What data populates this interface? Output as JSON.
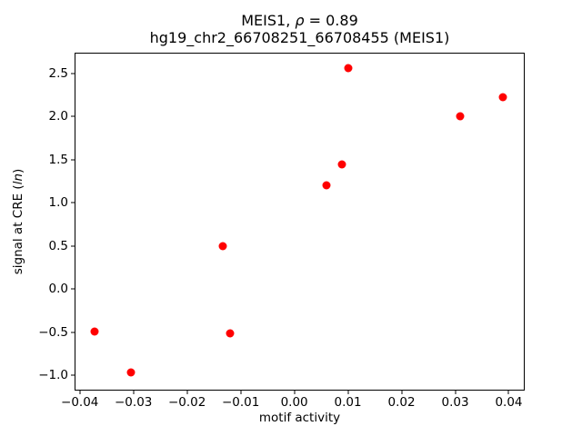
{
  "figure": {
    "title": {
      "prefix": "MEIS1, ",
      "rho": "ρ",
      "suffix": " = 0.89",
      "line2": "hg19_chr2_66708251_66708455 (MEIS1)"
    },
    "xlabel": "motif activity",
    "ylabel": {
      "prefix": "signal at CRE (",
      "italic": "ln",
      "suffix": ")"
    }
  },
  "chart_data": {
    "type": "scatter",
    "title": "MEIS1, ρ = 0.89",
    "subtitle": "hg19_chr2_66708251_66708455 (MEIS1)",
    "xlabel": "motif activity",
    "ylabel": "signal at CRE (ln)",
    "correlation_rho": 0.89,
    "grid": false,
    "legend": false,
    "background_color": "#ffffff",
    "spine_color": "#000000",
    "marker_color": "#ff0000",
    "xlim": [
      -0.0408,
      0.0428
    ],
    "ylim": [
      -1.165,
      2.73
    ],
    "x_ticks": [
      -0.04,
      -0.03,
      -0.02,
      -0.01,
      0.0,
      0.01,
      0.02,
      0.03,
      0.04
    ],
    "x_tick_labels": [
      "−0.04",
      "−0.03",
      "−0.02",
      "−0.01",
      "0.00",
      "0.01",
      "0.02",
      "0.03",
      "0.04"
    ],
    "y_ticks": [
      -1.0,
      -0.5,
      0.0,
      0.5,
      1.0,
      1.5,
      2.0,
      2.5
    ],
    "y_tick_labels": [
      "−1.0",
      "−0.5",
      "0.0",
      "0.5",
      "1.0",
      "1.5",
      "2.0",
      "2.5"
    ],
    "points": [
      {
        "x": -0.0373,
        "y": -0.49
      },
      {
        "x": -0.0305,
        "y": -0.96
      },
      {
        "x": -0.0134,
        "y": 0.5
      },
      {
        "x": -0.012,
        "y": -0.51
      },
      {
        "x": 0.006,
        "y": 1.2
      },
      {
        "x": 0.0089,
        "y": 1.45
      },
      {
        "x": 0.0101,
        "y": 2.56
      },
      {
        "x": 0.031,
        "y": 2.0
      },
      {
        "x": 0.0389,
        "y": 2.22
      }
    ]
  }
}
